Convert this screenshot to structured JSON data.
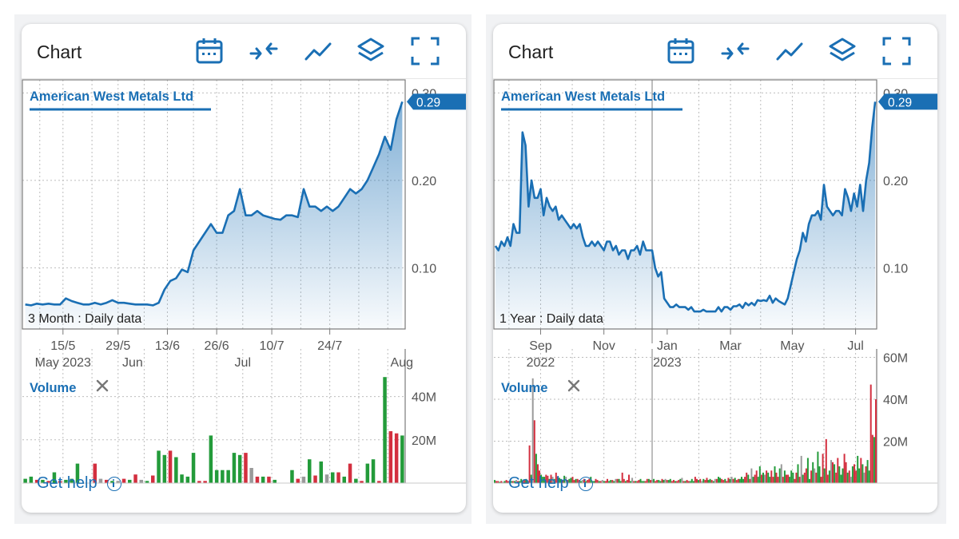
{
  "panels": [
    {
      "title": "Chart",
      "legend_label": "American West Metals Ltd",
      "period_label": "3 Month : Daily data",
      "current_price": "0.29",
      "volume_label": "Volume",
      "help_label": "Get help",
      "toolbar_icons": [
        "calendar-icon",
        "compare-icon",
        "line-chart-icon",
        "layers-icon",
        "fullscreen-icon"
      ]
    },
    {
      "title": "Chart",
      "legend_label": "American West Metals Ltd",
      "period_label": "1 Year : Daily data",
      "current_price": "0.29",
      "volume_label": "Volume",
      "help_label": "Get help",
      "toolbar_icons": [
        "calendar-icon",
        "compare-icon",
        "line-chart-icon",
        "layers-icon",
        "fullscreen-icon"
      ]
    }
  ],
  "colors": {
    "line": "#1a6fb4",
    "price_tag": "#1a6fb4",
    "volume_up": "#239b3a",
    "volume_down": "#d32f3f",
    "volume_flat": "#9a9a9a",
    "grid": "#bdbdbd",
    "axis_text": "#555555"
  },
  "chart_data": [
    {
      "type": "line",
      "title": "American West Metals Ltd",
      "series": [
        {
          "name": "American West Metals Ltd",
          "x": [
            0,
            1,
            2,
            3,
            4,
            5,
            6,
            7,
            8,
            9,
            10,
            11,
            12,
            13,
            14,
            15,
            16,
            17,
            18,
            19,
            20,
            21,
            22,
            23,
            24,
            25,
            26,
            27,
            28,
            29,
            30,
            31,
            32,
            33,
            34,
            35,
            36,
            37,
            38,
            39,
            40,
            41,
            42,
            43,
            44,
            45,
            46,
            47,
            48,
            49,
            50,
            51,
            52,
            53,
            54,
            55,
            56,
            57,
            58,
            59,
            60,
            61,
            62,
            63,
            64,
            65
          ],
          "values": [
            0.058,
            0.057,
            0.059,
            0.058,
            0.059,
            0.058,
            0.058,
            0.065,
            0.062,
            0.06,
            0.058,
            0.058,
            0.06,
            0.058,
            0.06,
            0.063,
            0.06,
            0.06,
            0.059,
            0.058,
            0.058,
            0.058,
            0.057,
            0.06,
            0.075,
            0.085,
            0.088,
            0.098,
            0.095,
            0.12,
            0.13,
            0.14,
            0.15,
            0.14,
            0.14,
            0.16,
            0.165,
            0.19,
            0.16,
            0.16,
            0.165,
            0.16,
            0.158,
            0.156,
            0.155,
            0.16,
            0.16,
            0.158,
            0.19,
            0.17,
            0.17,
            0.165,
            0.17,
            0.165,
            0.17,
            0.18,
            0.19,
            0.185,
            0.19,
            0.2,
            0.215,
            0.23,
            0.25,
            0.235,
            0.27,
            0.29
          ]
        }
      ],
      "x_ticks": [
        {
          "x": 6.5,
          "label": "15/5"
        },
        {
          "x": 16,
          "label": "29/5"
        },
        {
          "x": 24.5,
          "label": "13/6"
        },
        {
          "x": 33,
          "label": "26/6"
        },
        {
          "x": 42.5,
          "label": "10/7"
        },
        {
          "x": 52.5,
          "label": "24/7"
        }
      ],
      "x_subticks": [
        {
          "x": 6.5,
          "label": "May 2023"
        },
        {
          "x": 18.5,
          "label": "Jun"
        },
        {
          "x": 37.5,
          "label": "Jul"
        },
        {
          "x": 65,
          "label": "Aug"
        }
      ],
      "grid_x": [
        2.5,
        6.5,
        11.5,
        16,
        20.5,
        24.5,
        29,
        33,
        37.5,
        42.5,
        47.5,
        52.5,
        57.5,
        62.5
      ],
      "y_ticks": [
        0.1,
        0.2,
        0.3
      ],
      "ylim": [
        0.03,
        0.315
      ],
      "xlim": [
        -0.5,
        65.5
      ],
      "volume": {
        "ticks": [
          20,
          40
        ],
        "tick_labels": [
          "20M",
          "40M"
        ],
        "ylim": [
          0,
          62
        ],
        "values": [
          2,
          3,
          1.5,
          1.5,
          1,
          5,
          1,
          1.5,
          2,
          9,
          0,
          0,
          9,
          2,
          1.5,
          1,
          1,
          2,
          1.5,
          4,
          1.5,
          1,
          3.5,
          15,
          13,
          15,
          12,
          4,
          3,
          14,
          1,
          1,
          22,
          6,
          6,
          6,
          14,
          13,
          14,
          7,
          3,
          3,
          3,
          1.5,
          0,
          0,
          6,
          2,
          3,
          11,
          3.5,
          10,
          4,
          5,
          5,
          3,
          9,
          2,
          1,
          9,
          11,
          1,
          49,
          24,
          23,
          22
        ],
        "dirs": [
          "u",
          "u",
          "d",
          "u",
          "d",
          "u",
          "d",
          "u",
          "u",
          "u",
          "d",
          "d",
          "d",
          "f",
          "d",
          "u",
          "f",
          "d",
          "u",
          "d",
          "f",
          "u",
          "d",
          "u",
          "u",
          "d",
          "u",
          "u",
          "u",
          "u",
          "d",
          "d",
          "u",
          "u",
          "u",
          "u",
          "u",
          "u",
          "d",
          "f",
          "d",
          "u",
          "d",
          "u",
          "d",
          "d",
          "u",
          "d",
          "f",
          "u",
          "d",
          "u",
          "f",
          "u",
          "d",
          "u",
          "d",
          "u",
          "d",
          "u",
          "u",
          "d",
          "u",
          "d",
          "d",
          "u"
        ]
      }
    },
    {
      "type": "line",
      "title": "American West Metals Ltd",
      "series": [
        {
          "name": "American West Metals Ltd",
          "x": [
            0,
            2,
            4,
            6,
            8,
            10,
            12,
            14,
            16,
            18,
            20,
            22,
            24,
            26,
            28,
            30,
            32,
            34,
            36,
            38,
            40,
            42,
            44,
            46,
            48,
            50,
            52,
            54,
            56,
            58,
            60,
            62,
            64,
            66,
            68,
            70,
            72,
            74,
            76,
            78,
            80,
            82,
            84,
            86,
            88,
            90,
            92,
            94,
            96,
            98,
            100,
            102,
            104,
            106,
            108,
            110,
            112,
            114,
            116,
            118,
            120,
            122,
            124,
            126,
            128,
            130,
            132,
            134,
            136,
            138,
            140,
            142,
            144,
            146,
            148,
            150,
            152,
            154,
            156,
            158,
            160,
            162,
            164,
            166,
            168,
            170,
            172,
            174,
            176,
            178,
            180,
            182,
            184,
            186,
            188,
            190,
            192,
            194,
            196,
            198,
            200,
            202,
            204,
            206,
            208,
            210,
            212,
            214,
            216,
            218,
            220,
            222,
            224,
            226,
            228,
            230,
            232,
            234,
            236,
            238,
            240,
            242,
            244,
            246,
            248,
            250,
            252
          ],
          "values": [
            0.125,
            0.12,
            0.13,
            0.125,
            0.135,
            0.125,
            0.15,
            0.14,
            0.14,
            0.255,
            0.24,
            0.17,
            0.2,
            0.18,
            0.18,
            0.19,
            0.16,
            0.18,
            0.17,
            0.165,
            0.17,
            0.155,
            0.16,
            0.155,
            0.15,
            0.145,
            0.15,
            0.145,
            0.15,
            0.135,
            0.125,
            0.125,
            0.13,
            0.125,
            0.13,
            0.125,
            0.12,
            0.13,
            0.13,
            0.12,
            0.125,
            0.115,
            0.12,
            0.12,
            0.11,
            0.12,
            0.12,
            0.125,
            0.115,
            0.13,
            0.12,
            0.12,
            0.12,
            0.1,
            0.09,
            0.095,
            0.065,
            0.06,
            0.055,
            0.055,
            0.058,
            0.055,
            0.055,
            0.055,
            0.052,
            0.055,
            0.05,
            0.05,
            0.05,
            0.052,
            0.05,
            0.05,
            0.05,
            0.05,
            0.055,
            0.05,
            0.055,
            0.055,
            0.052,
            0.056,
            0.056,
            0.058,
            0.054,
            0.06,
            0.057,
            0.06,
            0.057,
            0.063,
            0.062,
            0.063,
            0.062,
            0.068,
            0.06,
            0.065,
            0.062,
            0.06,
            0.058,
            0.065,
            0.08,
            0.095,
            0.11,
            0.12,
            0.14,
            0.13,
            0.15,
            0.16,
            0.16,
            0.165,
            0.155,
            0.195,
            0.17,
            0.165,
            0.16,
            0.165,
            0.165,
            0.16,
            0.19,
            0.18,
            0.165,
            0.185,
            0.17,
            0.195,
            0.165,
            0.2,
            0.22,
            0.26,
            0.29
          ]
        }
      ],
      "x_ticks": [
        {
          "x": 30,
          "label": "Sep"
        },
        {
          "x": 72,
          "label": "Nov"
        },
        {
          "x": 114,
          "label": "Jan"
        },
        {
          "x": 156,
          "label": "Mar"
        },
        {
          "x": 197,
          "label": "May"
        },
        {
          "x": 239,
          "label": "Jul"
        }
      ],
      "x_subticks": [
        {
          "x": 30,
          "label": "2022"
        },
        {
          "x": 114,
          "label": "2023"
        }
      ],
      "grid_x": [
        9,
        30,
        51,
        72,
        93,
        135,
        156,
        176,
        197,
        218,
        239
      ],
      "year_line_x": 104,
      "y_ticks": [
        0.1,
        0.2,
        0.3
      ],
      "ylim": [
        0.03,
        0.315
      ],
      "xlim": [
        -1,
        253
      ],
      "volume": {
        "ticks": [
          20,
          40,
          60
        ],
        "tick_labels": [
          "20M",
          "40M",
          "60M"
        ],
        "ylim": [
          0,
          64
        ],
        "values": [
          1.5,
          1,
          1,
          0.6,
          1,
          0.6,
          1,
          1.5,
          1,
          0.6,
          1,
          1,
          1,
          1.5,
          1,
          1,
          2,
          1,
          1.5,
          2,
          1,
          18,
          4,
          50,
          30,
          14,
          9,
          6,
          4,
          3,
          3,
          4,
          3.5,
          2,
          4,
          3,
          2,
          5,
          3,
          2.5,
          2,
          1.5,
          3.5,
          3,
          1.5,
          2,
          2.5,
          3,
          1.5,
          2,
          2,
          1.5,
          1,
          1.5,
          2,
          1,
          1.5,
          2,
          3,
          1,
          1,
          2,
          1.5,
          1,
          1,
          1.5,
          1,
          1,
          2,
          1,
          1.5,
          1.5,
          1,
          2,
          2,
          2,
          1,
          5,
          2,
          1,
          1.5,
          4,
          1,
          2.5,
          1,
          1,
          1,
          1.5,
          2,
          1,
          1,
          1,
          2,
          2,
          1.5,
          1.5,
          2,
          1,
          1.5,
          1.5,
          1,
          2,
          1.5,
          2,
          1.5,
          1.5,
          2,
          1,
          1.5,
          1,
          1,
          1.5,
          2,
          2.5,
          1,
          1,
          1.5,
          1,
          1,
          2,
          1,
          3,
          2,
          1.5,
          2,
          1,
          2,
          1.5,
          2.5,
          1.5,
          2,
          1.5,
          1,
          2,
          2,
          3,
          2.5,
          2,
          1.5,
          2,
          1,
          2.5,
          2,
          3,
          2,
          2.5,
          1.5,
          2,
          2,
          3,
          2,
          3,
          5,
          4,
          2,
          7,
          3,
          4,
          6,
          3,
          8,
          4,
          5,
          4,
          6,
          5,
          3,
          6,
          3,
          8,
          5,
          3,
          7,
          9,
          3,
          6,
          4,
          4,
          3,
          6,
          5,
          2,
          5,
          9,
          3,
          13,
          4,
          5,
          7,
          12,
          2,
          6,
          10,
          7,
          5,
          15,
          8,
          3,
          14,
          7,
          21,
          4,
          6,
          11,
          10,
          9,
          5,
          12,
          8,
          4,
          7,
          14,
          10,
          5,
          6,
          3,
          8,
          9,
          6,
          13,
          7,
          12,
          9,
          5,
          8,
          11,
          6,
          47,
          23,
          22,
          40
        ],
        "dirs_pattern": "uddudfudduudufduudduddufdudduu"
      }
    }
  ]
}
